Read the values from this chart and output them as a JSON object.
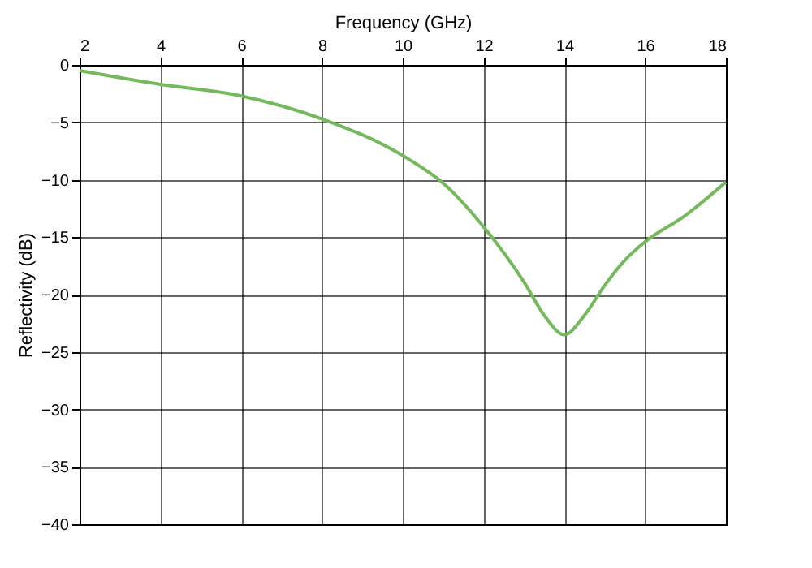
{
  "chart_data": {
    "type": "line",
    "xlabel": "Frequency (GHz)",
    "ylabel": "Reflectivity (dB)",
    "x": [
      2,
      4,
      6,
      8,
      10,
      11,
      12,
      13,
      13.5,
      14,
      14.5,
      15,
      15.5,
      16,
      17,
      18
    ],
    "series": [
      {
        "color": "#74b95b",
        "values": [
          -0.5,
          -1.7,
          -2.7,
          -4.7,
          -7.9,
          -10.3,
          -14.1,
          -18.9,
          -21.8,
          -23.5,
          -21.8,
          -19.2,
          -17,
          -15.4,
          -13.1,
          -10.2
        ]
      }
    ],
    "xlim": [
      2,
      18
    ],
    "xticks": [
      2,
      4,
      6,
      8,
      10,
      12,
      14,
      16,
      18
    ],
    "ylim": [
      -40,
      0
    ],
    "yticks": [
      0,
      -5,
      -10,
      -15,
      -20,
      -25,
      -30,
      -35,
      -40
    ],
    "grid": true,
    "marker": "none",
    "line_style": "solid"
  }
}
